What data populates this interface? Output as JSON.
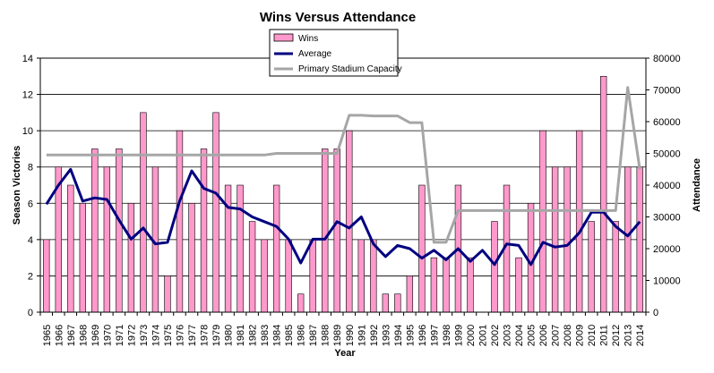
{
  "chart_data": {
    "type": "bar",
    "title": "Wins Versus Attendance",
    "xlabel": "Year",
    "ylabel": "Season Victories",
    "y2label": "Attendance",
    "ylim": [
      0,
      14
    ],
    "y2lim": [
      0,
      80000
    ],
    "yticks": [
      "0",
      "2",
      "4",
      "6",
      "8",
      "10",
      "12",
      "14"
    ],
    "y2ticks": [
      "0",
      "10000",
      "20000",
      "30000",
      "40000",
      "50000",
      "60000",
      "70000",
      "80000"
    ],
    "grid": true,
    "legend_position": "top-center",
    "categories": [
      "1965",
      "1966",
      "1967",
      "1968",
      "1969",
      "1970",
      "1971",
      "1972",
      "1973",
      "1974",
      "1975",
      "1976",
      "1977",
      "1978",
      "1979",
      "1980",
      "1981",
      "1982",
      "1983",
      "1984",
      "1985",
      "1986",
      "1987",
      "1988",
      "1989",
      "1990",
      "1991",
      "1992",
      "1993",
      "1994",
      "1995",
      "1996",
      "1997",
      "1998",
      "1999",
      "2000",
      "2001",
      "2002",
      "2003",
      "2004",
      "2005",
      "2006",
      "2007",
      "2008",
      "2009",
      "2010",
      "2011",
      "2012",
      "2013",
      "2014"
    ],
    "series": [
      {
        "name": "Wins",
        "axis": "left",
        "kind": "bar",
        "color": "#ff99cc",
        "values": [
          4,
          8,
          7,
          6,
          9,
          8,
          9,
          6,
          11,
          8,
          2,
          10,
          6,
          9,
          11,
          7,
          7,
          5,
          4,
          7,
          4,
          1,
          4,
          9,
          9,
          10,
          4,
          4,
          1,
          1,
          2,
          7,
          3,
          3,
          7,
          3,
          0,
          5,
          7,
          3,
          6,
          10,
          8,
          8,
          10,
          5,
          13,
          5,
          8,
          8
        ]
      },
      {
        "name": "Average",
        "axis": "right",
        "kind": "line",
        "color": "#000080",
        "values": [
          34000,
          40000,
          45000,
          35000,
          36000,
          35500,
          29000,
          23000,
          26500,
          21500,
          22000,
          35000,
          44500,
          39000,
          37500,
          33000,
          32500,
          30000,
          28500,
          27000,
          23000,
          15500,
          23000,
          23000,
          28500,
          26500,
          30000,
          21500,
          17500,
          21000,
          20000,
          17000,
          19500,
          16500,
          20000,
          16000,
          19500,
          15000,
          21500,
          21000,
          15000,
          22000,
          20500,
          21000,
          25000,
          31500,
          31500,
          27000,
          24000,
          28500
        ]
      },
      {
        "name": "Primary Stadium Capacity",
        "axis": "right",
        "kind": "line",
        "color": "#a6a6a6",
        "values": [
          49500,
          49500,
          49500,
          49500,
          49500,
          49500,
          49500,
          49500,
          49500,
          49500,
          49500,
          49500,
          49500,
          49500,
          49500,
          49500,
          49500,
          49500,
          49500,
          50000,
          50000,
          50000,
          50000,
          50000,
          50000,
          62000,
          62000,
          61800,
          61800,
          61800,
          59700,
          59700,
          22000,
          22000,
          32000,
          32000,
          32000,
          32000,
          32000,
          32000,
          32000,
          32000,
          32000,
          32000,
          32000,
          32000,
          32000,
          32000,
          70800,
          45000
        ]
      }
    ]
  },
  "colors": {
    "bar_fill": "#ff99cc",
    "bar_stroke": "#000000",
    "average_line": "#000080",
    "capacity_line": "#a6a6a6",
    "grid": "#000000"
  }
}
